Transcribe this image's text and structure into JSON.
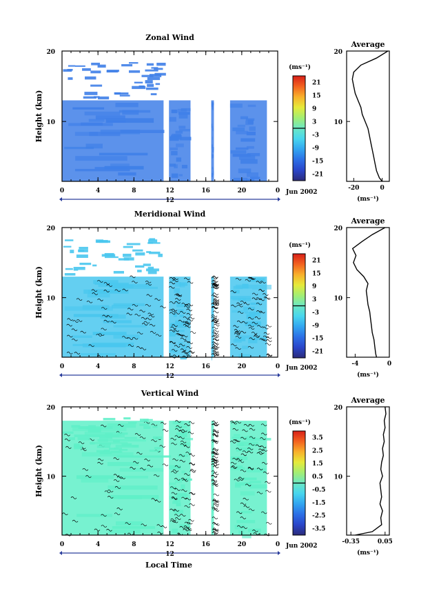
{
  "colors": {
    "background": "#ffffff",
    "colorbar_stops": [
      "#2b2b7a",
      "#2a45c9",
      "#2c6fe6",
      "#32a5f0",
      "#48d6ee",
      "#6be8c4",
      "#a3ee73",
      "#e6ea3a",
      "#f8b02b",
      "#f3621f",
      "#d81f18"
    ],
    "zonal_field": "#3f7fe8",
    "meridional_field": "#49c7ee",
    "vertical_field": "#5ff0c8"
  },
  "shared": {
    "x_ticks": [
      "0",
      "4",
      "8",
      "12",
      "16",
      "20",
      "0"
    ],
    "day_marker": "12",
    "date_label": "Jun 2002",
    "xlabel": "Local Time"
  },
  "chart_data": [
    {
      "type": "heatmap",
      "title": "Zonal Wind",
      "ylabel": "Height (km)",
      "yticks": [
        "20",
        "10"
      ],
      "xlim": [
        0,
        24
      ],
      "ylim": [
        1.5,
        20
      ],
      "colorbar": {
        "unit": "(ms⁻¹)",
        "ticks": [
          "21",
          "15",
          "9",
          "3",
          "-3",
          "-9",
          "-15",
          "-21"
        ],
        "range": [
          -24,
          24
        ]
      },
      "data_columns": [
        [
          0,
          11.3
        ],
        [
          11.9,
          14.3
        ],
        [
          16.6,
          16.9
        ],
        [
          18.7,
          22.8
        ]
      ],
      "cloud_top_km": 13.0
    },
    {
      "type": "heatmap",
      "title": "Meridional Wind",
      "ylabel": "Height (km)",
      "yticks": [
        "20",
        "10"
      ],
      "xlim": [
        0,
        24
      ],
      "ylim": [
        1.5,
        20
      ],
      "colorbar": {
        "unit": "(ms⁻¹)",
        "ticks": [
          "21",
          "15",
          "9",
          "3",
          "-3",
          "-9",
          "-15",
          "-21"
        ],
        "range": [
          -24,
          24
        ]
      },
      "data_columns": [
        [
          0,
          11.3
        ],
        [
          11.9,
          14.3
        ],
        [
          16.6,
          16.9
        ],
        [
          18.7,
          22.8
        ]
      ],
      "cloud_top_km": 13.0
    },
    {
      "type": "heatmap",
      "title": "Vertical Wind",
      "ylabel": "Height (km)",
      "yticks": [
        "20",
        "10"
      ],
      "xlim": [
        0,
        24
      ],
      "ylim": [
        1.5,
        20
      ],
      "colorbar": {
        "unit": "(ms⁻¹)",
        "ticks": [
          "3.5",
          "2.5",
          "1.5",
          "0.5",
          "-0.5",
          "-1.5",
          "-2.5",
          "-3.5"
        ],
        "range": [
          -4,
          4
        ]
      },
      "data_columns": [
        [
          0,
          11.3
        ],
        [
          11.9,
          14.3
        ],
        [
          16.6,
          16.9
        ],
        [
          18.7,
          22.8
        ]
      ],
      "cloud_top_km": 18.0
    },
    {
      "type": "line",
      "title": "Average",
      "xlabel": "(ms⁻¹)",
      "xticks": [
        "-20",
        "0"
      ],
      "yticks": [
        "20",
        "10"
      ],
      "xlim": [
        -25,
        5
      ],
      "ylim": [
        1.5,
        20
      ],
      "y": [
        1.5,
        2,
        3,
        4,
        5,
        6,
        7,
        8,
        9,
        10,
        11,
        12,
        13,
        14,
        15,
        16,
        17,
        18,
        19,
        20
      ],
      "x": [
        0,
        -2,
        -4,
        -5,
        -6,
        -7,
        -8,
        -9,
        -10,
        -12,
        -14,
        -15,
        -17,
        -19,
        -20,
        -21,
        -20,
        -15,
        -4,
        4
      ]
    },
    {
      "type": "line",
      "title": "Average",
      "xlabel": "(ms⁻¹)",
      "xticks": [
        "-4",
        "0"
      ],
      "yticks": [
        "20",
        "10"
      ],
      "xlim": [
        -5,
        0
      ],
      "ylim": [
        1.5,
        20
      ],
      "y": [
        1.5,
        2,
        3,
        4,
        5,
        6,
        7,
        8,
        9,
        10,
        11,
        12,
        13,
        14,
        15,
        16,
        17,
        18,
        19,
        20
      ],
      "x": [
        -1.5,
        -1.6,
        -1.7,
        -1.8,
        -2.0,
        -2.1,
        -2.2,
        -2.3,
        -2.5,
        -2.6,
        -2.7,
        -2.5,
        -3.0,
        -3.8,
        -4.2,
        -3.9,
        -4.3,
        -3.2,
        -2.0,
        -0.5
      ]
    },
    {
      "type": "line",
      "title": "Average",
      "xlabel": "(ms⁻¹)",
      "xticks": [
        "-0.35",
        "0.05"
      ],
      "yticks": [
        "20",
        "10"
      ],
      "xlim": [
        -0.4,
        0.1
      ],
      "ylim": [
        1.5,
        20
      ],
      "y": [
        1.5,
        2,
        3,
        4,
        5,
        6,
        7,
        8,
        9,
        10,
        11,
        12,
        13,
        14,
        15,
        16,
        17,
        18,
        19,
        20
      ],
      "x": [
        -0.3,
        -0.1,
        0.01,
        0.0,
        0.02,
        -0.01,
        0.01,
        0.0,
        -0.01,
        0.02,
        0.0,
        0.01,
        0.03,
        0.02,
        0.04,
        0.03,
        0.05,
        0.04,
        0.06,
        0.05
      ]
    }
  ]
}
